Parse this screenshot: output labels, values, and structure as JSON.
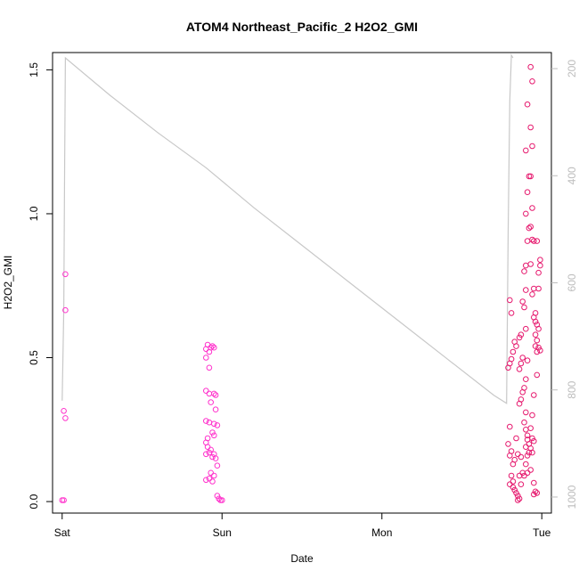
{
  "chart_data": {
    "type": "scatter",
    "title": "ATOM4 Northeast_Pacific_2 H2O2_GMI",
    "xlabel": "Date",
    "ylabel": "H2O2_GMI",
    "x_tick_labels": [
      "Sat",
      "Sun",
      "Mon",
      "Tue"
    ],
    "x_tick_values": [
      0,
      1,
      2,
      3
    ],
    "xlim": [
      -0.06,
      3.06
    ],
    "ylim": [
      -0.04,
      1.56
    ],
    "y_ticks": [
      0.0,
      0.5,
      1.0,
      1.5
    ],
    "y_tick_labels": [
      "0.0",
      "0.5",
      "1.0",
      "1.5"
    ],
    "right_axis": {
      "ticks": [
        200,
        400,
        600,
        800,
        1000
      ],
      "tick_labels": [
        "200",
        "400",
        "600",
        "800",
        "1000"
      ],
      "lim": [
        1030,
        170
      ],
      "color": "#bdbdbd"
    },
    "colors": {
      "points_left": "#ff33cc",
      "points_right": "#e6196e",
      "pressure": "#c8c8c8"
    },
    "grid": false,
    "series": [
      {
        "type": "scatter",
        "points": [
          [
            0.02,
            0.79
          ],
          [
            0.02,
            0.665
          ],
          [
            0.01,
            0.315
          ],
          [
            0.02,
            0.29
          ],
          [
            0.0,
            0.005
          ],
          [
            0.01,
            0.005
          ],
          [
            0.9,
            0.53
          ],
          [
            0.91,
            0.545
          ],
          [
            0.92,
            0.52
          ],
          [
            0.9,
            0.5
          ],
          [
            0.93,
            0.535
          ],
          [
            0.94,
            0.54
          ],
          [
            0.95,
            0.535
          ],
          [
            0.92,
            0.465
          ],
          [
            0.9,
            0.385
          ],
          [
            0.92,
            0.375
          ],
          [
            0.95,
            0.375
          ],
          [
            0.96,
            0.37
          ],
          [
            0.93,
            0.345
          ],
          [
            0.96,
            0.32
          ],
          [
            0.9,
            0.28
          ],
          [
            0.92,
            0.275
          ],
          [
            0.95,
            0.27
          ],
          [
            0.97,
            0.265
          ],
          [
            0.94,
            0.24
          ],
          [
            0.95,
            0.23
          ],
          [
            0.91,
            0.22
          ],
          [
            0.9,
            0.205
          ],
          [
            0.91,
            0.19
          ],
          [
            0.93,
            0.18
          ],
          [
            0.92,
            0.17
          ],
          [
            0.9,
            0.165
          ],
          [
            0.95,
            0.165
          ],
          [
            0.94,
            0.155
          ],
          [
            0.96,
            0.15
          ],
          [
            0.97,
            0.125
          ],
          [
            0.93,
            0.1
          ],
          [
            0.95,
            0.09
          ],
          [
            0.92,
            0.08
          ],
          [
            0.9,
            0.075
          ],
          [
            0.94,
            0.07
          ],
          [
            0.97,
            0.02
          ],
          [
            0.98,
            0.01
          ],
          [
            0.99,
            0.005
          ],
          [
            1.0,
            0.005
          ]
        ]
      },
      {
        "type": "scatter",
        "points": [
          [
            2.8,
            0.7
          ],
          [
            2.81,
            0.655
          ],
          [
            2.83,
            0.555
          ],
          [
            2.84,
            0.54
          ],
          [
            2.82,
            0.52
          ],
          [
            2.8,
            0.48
          ],
          [
            2.79,
            0.465
          ],
          [
            2.81,
            0.495
          ],
          [
            2.8,
            0.26
          ],
          [
            2.79,
            0.2
          ],
          [
            2.8,
            0.16
          ],
          [
            2.81,
            0.175
          ],
          [
            2.82,
            0.13
          ],
          [
            2.83,
            0.145
          ],
          [
            2.81,
            0.09
          ],
          [
            2.82,
            0.07
          ],
          [
            2.8,
            0.06
          ],
          [
            2.82,
            0.05
          ],
          [
            2.83,
            0.04
          ],
          [
            2.84,
            0.03
          ],
          [
            2.85,
            0.02
          ],
          [
            2.86,
            0.01
          ],
          [
            2.85,
            0.005
          ],
          [
            2.87,
            0.06
          ],
          [
            2.86,
            0.09
          ],
          [
            2.88,
            0.1
          ],
          [
            2.87,
            0.155
          ],
          [
            2.85,
            0.165
          ],
          [
            2.84,
            0.22
          ],
          [
            2.86,
            0.34
          ],
          [
            2.87,
            0.355
          ],
          [
            2.88,
            0.38
          ],
          [
            2.86,
            0.46
          ],
          [
            2.87,
            0.48
          ],
          [
            2.88,
            0.5
          ],
          [
            2.86,
            0.57
          ],
          [
            2.87,
            0.58
          ],
          [
            2.88,
            0.695
          ],
          [
            2.89,
            0.675
          ],
          [
            2.9,
            0.6
          ],
          [
            2.91,
            0.49
          ],
          [
            2.9,
            0.425
          ],
          [
            2.89,
            0.395
          ],
          [
            2.9,
            0.31
          ],
          [
            2.89,
            0.275
          ],
          [
            2.9,
            0.25
          ],
          [
            2.91,
            0.215
          ],
          [
            2.9,
            0.19
          ],
          [
            2.91,
            0.16
          ],
          [
            2.92,
            0.17
          ],
          [
            2.9,
            0.13
          ],
          [
            2.91,
            0.1
          ],
          [
            2.89,
            0.09
          ],
          [
            2.9,
            0.82
          ],
          [
            2.89,
            0.8
          ],
          [
            2.9,
            0.735
          ],
          [
            2.91,
            0.905
          ],
          [
            2.92,
            0.95
          ],
          [
            2.9,
            1.0
          ],
          [
            2.91,
            1.075
          ],
          [
            2.92,
            1.13
          ],
          [
            2.9,
            1.22
          ],
          [
            2.91,
            1.38
          ],
          [
            2.93,
            1.51
          ],
          [
            2.94,
            1.46
          ],
          [
            2.93,
            1.3
          ],
          [
            2.94,
            1.235
          ],
          [
            2.93,
            1.13
          ],
          [
            2.94,
            1.02
          ],
          [
            2.93,
            0.955
          ],
          [
            2.94,
            0.91
          ],
          [
            2.95,
            0.905
          ],
          [
            2.93,
            0.825
          ],
          [
            2.94,
            0.72
          ],
          [
            2.95,
            0.74
          ],
          [
            2.96,
            0.655
          ],
          [
            2.95,
            0.64
          ],
          [
            2.96,
            0.625
          ],
          [
            2.97,
            0.615
          ],
          [
            2.96,
            0.58
          ],
          [
            2.98,
            0.6
          ],
          [
            2.97,
            0.56
          ],
          [
            2.96,
            0.54
          ],
          [
            2.97,
            0.52
          ],
          [
            2.98,
            0.535
          ],
          [
            2.99,
            0.525
          ],
          [
            2.97,
            0.44
          ],
          [
            2.95,
            0.37
          ],
          [
            2.94,
            0.3
          ],
          [
            2.93,
            0.255
          ],
          [
            2.94,
            0.22
          ],
          [
            2.95,
            0.21
          ],
          [
            2.93,
            0.185
          ],
          [
            2.94,
            0.17
          ],
          [
            2.93,
            0.11
          ],
          [
            2.95,
            0.065
          ],
          [
            2.96,
            0.035
          ],
          [
            2.97,
            0.03
          ],
          [
            2.95,
            0.025
          ],
          [
            2.98,
            0.795
          ],
          [
            2.99,
            0.82
          ],
          [
            2.99,
            0.84
          ],
          [
            2.98,
            0.74
          ],
          [
            2.97,
            0.905
          ],
          [
            2.92,
            0.2
          ],
          [
            2.91,
            0.23
          ]
        ]
      },
      {
        "type": "line",
        "axis": "right",
        "points": [
          [
            0.0,
            820
          ],
          [
            0.01,
            650
          ],
          [
            0.015,
            400
          ],
          [
            0.02,
            180
          ],
          [
            0.3,
            250
          ],
          [
            0.6,
            320
          ],
          [
            0.9,
            385
          ],
          [
            1.2,
            460
          ],
          [
            1.5,
            530
          ],
          [
            1.8,
            600
          ],
          [
            2.1,
            670
          ],
          [
            2.4,
            740
          ],
          [
            2.7,
            810
          ],
          [
            2.78,
            825
          ],
          [
            2.79,
            500
          ],
          [
            2.8,
            260
          ],
          [
            2.81,
            175
          ],
          [
            2.82,
            180
          ]
        ]
      }
    ]
  }
}
